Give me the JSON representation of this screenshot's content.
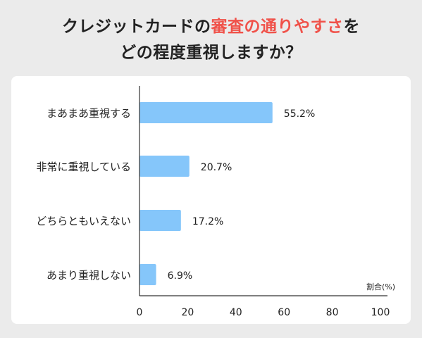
{
  "title": {
    "line1_prefix": "クレジットカードの",
    "line1_highlight": "審査の通りやすさ",
    "line1_suffix": "を",
    "line2": "どの程度重視しますか？"
  },
  "colors": {
    "bar": "#85c6fa",
    "highlight": "#f0524a",
    "axis": "#333333"
  },
  "chart_data": {
    "type": "bar",
    "orientation": "horizontal",
    "categories": [
      "まあまあ重視する",
      "非常に重視している",
      "どちらともいえない",
      "あまり重視しない"
    ],
    "values": [
      55.2,
      20.7,
      17.2,
      6.9
    ],
    "data_labels": [
      "55.2%",
      "20.7%",
      "17.2%",
      "6.9%"
    ],
    "xlim": [
      0,
      100
    ],
    "xticks": [
      0,
      20,
      40,
      60,
      80,
      100
    ],
    "xlabel": "割合(%)",
    "grid": false
  }
}
